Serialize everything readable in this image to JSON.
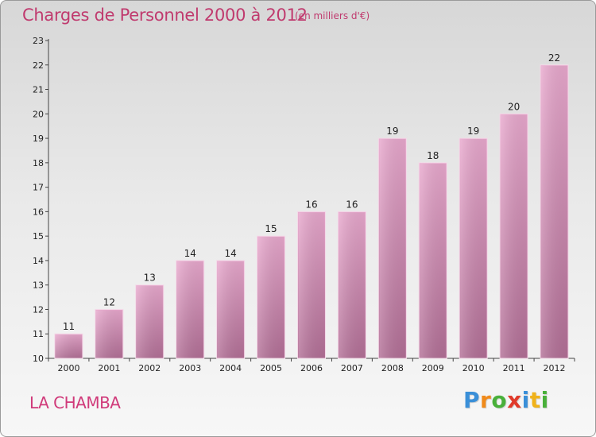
{
  "chart_data": {
    "type": "bar",
    "title": "Charges de Personnel 2000 à 2012",
    "subtitle": "(en milliers d'€)",
    "categories": [
      "2000",
      "2001",
      "2002",
      "2003",
      "2004",
      "2005",
      "2006",
      "2007",
      "2008",
      "2009",
      "2010",
      "2011",
      "2012"
    ],
    "values": [
      11,
      12,
      13,
      14,
      14,
      15,
      16,
      16,
      19,
      18,
      19,
      20,
      22
    ],
    "ylim": [
      10,
      23
    ],
    "yticks": [
      10,
      11,
      12,
      13,
      14,
      15,
      16,
      17,
      18,
      19,
      20,
      21,
      22,
      23
    ],
    "xlabel": "",
    "ylabel": "",
    "bar_color": "#d38ab6",
    "grid": false
  },
  "commune": "LA CHAMBA",
  "logo": {
    "letters": [
      {
        "char": "P",
        "color": "#3a8fd8"
      },
      {
        "char": "r",
        "color": "#f08a1a"
      },
      {
        "char": "o",
        "color": "#49b03a"
      },
      {
        "char": "x",
        "color": "#e03a2a"
      },
      {
        "char": "i",
        "color": "#3a8fd8"
      },
      {
        "char": "t",
        "color": "#f0b21a"
      },
      {
        "char": "i",
        "color": "#49b03a"
      }
    ]
  }
}
